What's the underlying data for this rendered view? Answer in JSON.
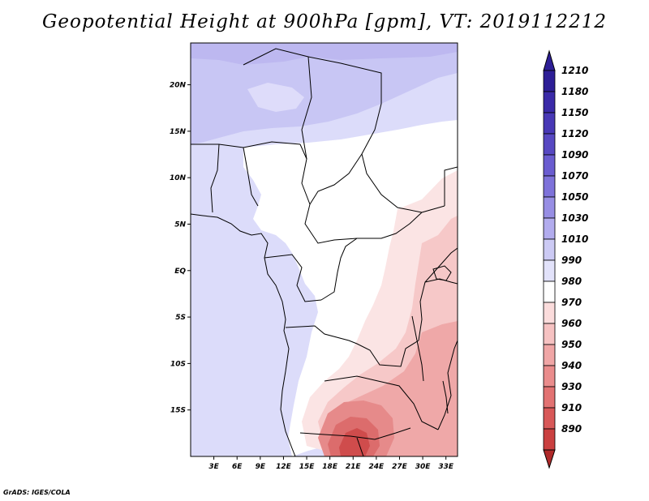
{
  "title": "Geopotential Height at 900hPa [gpm], VT: 2019112212",
  "credit": "GrADS: IGES/COLA",
  "map": {
    "lat_labels": [
      {
        "lat": 20,
        "text": "20N"
      },
      {
        "lat": 15,
        "text": "15N"
      },
      {
        "lat": 10,
        "text": "10N"
      },
      {
        "lat": 5,
        "text": "5N"
      },
      {
        "lat": 0,
        "text": "EQ"
      },
      {
        "lat": -5,
        "text": "5S"
      },
      {
        "lat": -10,
        "text": "10S"
      },
      {
        "lat": -15,
        "text": "15S"
      }
    ],
    "lon_labels": [
      {
        "lon": 3,
        "text": "3E"
      },
      {
        "lon": 6,
        "text": "6E"
      },
      {
        "lon": 9,
        "text": "9E"
      },
      {
        "lon": 12,
        "text": "12E"
      },
      {
        "lon": 15,
        "text": "15E"
      },
      {
        "lon": 18,
        "text": "18E"
      },
      {
        "lon": 21,
        "text": "21E"
      },
      {
        "lon": 24,
        "text": "24E"
      },
      {
        "lon": 27,
        "text": "27E"
      },
      {
        "lon": 30,
        "text": "30E"
      },
      {
        "lon": 33,
        "text": "33E"
      }
    ],
    "lon_range": [
      0,
      34.5
    ],
    "lat_range": [
      -20,
      24.5
    ]
  },
  "colorbar": {
    "levels": [
      {
        "label": "1210",
        "color": "#2d1e96"
      },
      {
        "label": "1180",
        "color": "#3a2aa8"
      },
      {
        "label": "1150",
        "color": "#4838b6"
      },
      {
        "label": "1120",
        "color": "#5748c2"
      },
      {
        "label": "1090",
        "color": "#6a5cd0"
      },
      {
        "label": "1070",
        "color": "#7e72da"
      },
      {
        "label": "1050",
        "color": "#978ee4"
      },
      {
        "label": "1030",
        "color": "#b2acee"
      },
      {
        "label": "1010",
        "color": "#cccaf4"
      },
      {
        "label": "990",
        "color": "#e2e2fa"
      },
      {
        "label": "980",
        "color": "#ffffff"
      },
      {
        "label": "970",
        "color": "#fbdcdc"
      },
      {
        "label": "960",
        "color": "#f6c2c2"
      },
      {
        "label": "950",
        "color": "#f0a6a6"
      },
      {
        "label": "940",
        "color": "#ea8c8c"
      },
      {
        "label": "930",
        "color": "#e27272"
      },
      {
        "label": "910",
        "color": "#d85858"
      },
      {
        "label": "890",
        "color": "#ca4040"
      }
    ],
    "bottom_color": "#b02a2a"
  }
}
